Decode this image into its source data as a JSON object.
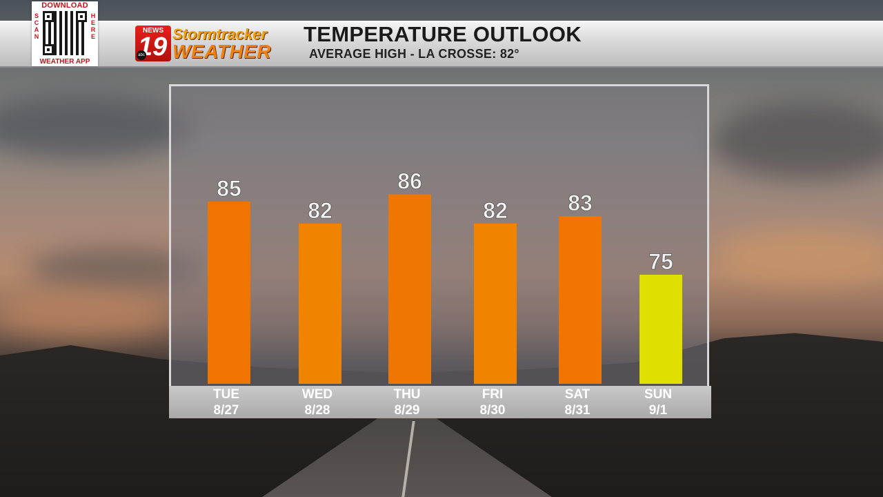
{
  "header": {
    "title": "TEMPERATURE OUTLOOK",
    "subtitle": "AVERAGE HIGH - LA CROSSE: 82°",
    "qr": {
      "top_text": "DOWNLOAD",
      "left_text": "SCAN",
      "right_text": "HERE",
      "bottom_text": "WEATHER APP"
    },
    "logo": {
      "news": "NEWS",
      "number": "19",
      "network": "abc",
      "line1": "Stormtracker",
      "line2": "WEATHER"
    }
  },
  "chart_data": {
    "type": "bar",
    "categories": [
      "TUE",
      "WED",
      "THU",
      "FRI",
      "SAT",
      "SUN"
    ],
    "dates": [
      "8/27",
      "8/28",
      "8/29",
      "8/30",
      "8/31",
      "9/1"
    ],
    "values": [
      85,
      82,
      86,
      82,
      83,
      75
    ],
    "colors": [
      "#ef7400",
      "#f08300",
      "#ef7600",
      "#f08300",
      "#ef7400",
      "#e0e000"
    ],
    "title": "TEMPERATURE OUTLOOK",
    "xlabel": "",
    "ylabel": "",
    "grid": false,
    "legend": false
  }
}
